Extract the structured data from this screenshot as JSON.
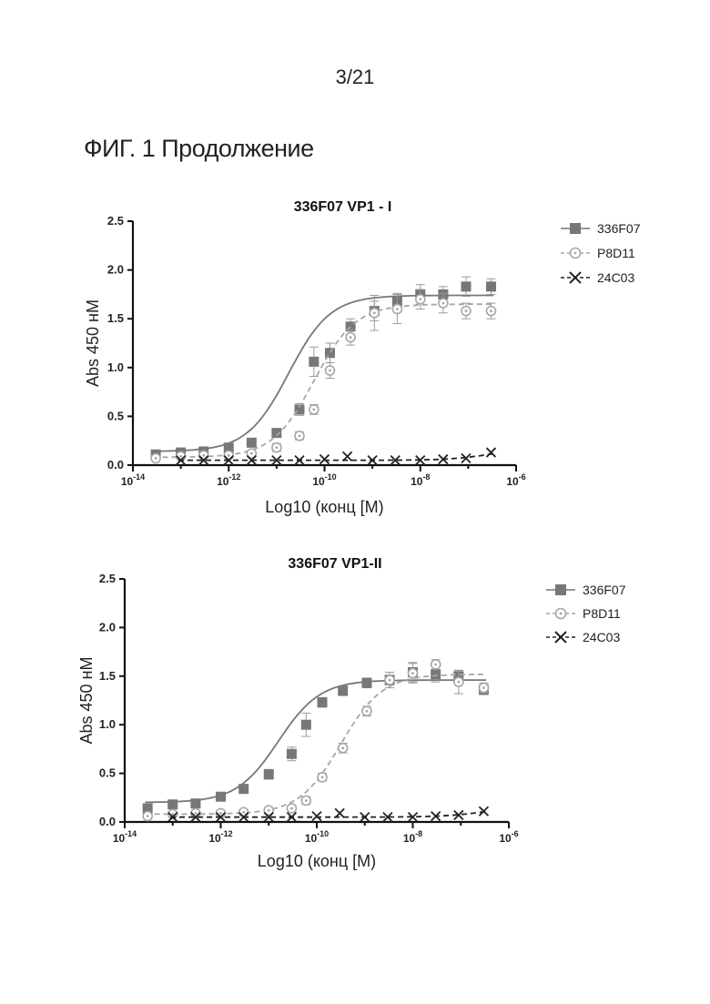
{
  "page": {
    "number": "3/21",
    "figure_heading": "ФИГ. 1 Продолжение"
  },
  "colors": {
    "336F07": "#777777",
    "P8D11": "#a6a6a6",
    "24C03": "#222222",
    "axis": "#111111"
  },
  "chart_data": [
    {
      "type": "scatter",
      "title": "336F07 VP1 - I",
      "xlabel": "Log10 (конц [M)",
      "ylabel": "Abs 450 нМ",
      "xscale": "log",
      "xlim": [
        1e-14,
        1e-06
      ],
      "ylim": [
        0,
        2.5
      ],
      "yticks": [
        "0.0",
        "0.5",
        "1.0",
        "1.5",
        "2.0",
        "2.5"
      ],
      "xticks": [
        {
          "base": "10",
          "exp": "-14"
        },
        {
          "base": "10",
          "exp": "-12"
        },
        {
          "base": "10",
          "exp": "-10"
        },
        {
          "base": "10",
          "exp": "-8"
        },
        {
          "base": "10",
          "exp": "-6"
        }
      ],
      "legend_position": "right",
      "series": [
        {
          "name": "336F07",
          "marker": "square",
          "line": "solid",
          "x": [
            3e-14,
            1e-13,
            3e-13,
            1e-12,
            3e-12,
            1e-11,
            3e-11,
            6e-11,
            1.3e-10,
            3.5e-10,
            1.1e-09,
            3.3e-09,
            1e-08,
            3e-08,
            9e-08,
            3e-07
          ],
          "y": [
            0.11,
            0.13,
            0.14,
            0.18,
            0.23,
            0.33,
            0.57,
            1.06,
            1.15,
            1.42,
            1.58,
            1.68,
            1.75,
            1.75,
            1.83,
            1.83
          ],
          "err": [
            0.03,
            0.03,
            0.03,
            0.03,
            0.03,
            0.04,
            0.06,
            0.15,
            0.1,
            0.08,
            0.1,
            0.08,
            0.1,
            0.08,
            0.1,
            0.08
          ],
          "fit": {
            "bottom": 0.14,
            "top": 1.74,
            "log_ec50": -10.75,
            "hill": 1.0
          }
        },
        {
          "name": "P8D11",
          "marker": "circle",
          "line": "dashed",
          "x": [
            3e-14,
            1e-13,
            3e-13,
            1e-12,
            3e-12,
            1e-11,
            3e-11,
            6e-11,
            1.3e-10,
            3.5e-10,
            1.1e-09,
            3.3e-09,
            1e-08,
            3e-08,
            9e-08,
            3e-07
          ],
          "y": [
            0.07,
            0.09,
            0.1,
            0.1,
            0.12,
            0.18,
            0.3,
            0.57,
            0.97,
            1.31,
            1.56,
            1.6,
            1.7,
            1.66,
            1.58,
            1.58
          ],
          "err": [
            0.02,
            0.02,
            0.02,
            0.02,
            0.03,
            0.04,
            0.04,
            0.05,
            0.08,
            0.08,
            0.18,
            0.15,
            0.1,
            0.1,
            0.08,
            0.08
          ],
          "fit": {
            "bottom": 0.08,
            "top": 1.65,
            "log_ec50": -10.22,
            "hill": 1.0
          }
        },
        {
          "name": "24C03",
          "marker": "x",
          "line": "dashed",
          "x": [
            1e-13,
            3e-13,
            1e-12,
            3e-12,
            1e-11,
            3e-11,
            1e-10,
            3e-10,
            1e-09,
            3e-09,
            1e-08,
            3e-08,
            9e-08,
            3e-07
          ],
          "y": [
            0.05,
            0.05,
            0.05,
            0.05,
            0.05,
            0.05,
            0.06,
            0.09,
            0.05,
            0.05,
            0.05,
            0.06,
            0.07,
            0.13
          ],
          "err": [
            0,
            0,
            0,
            0,
            0,
            0,
            0,
            0,
            0,
            0,
            0,
            0,
            0,
            0
          ],
          "fit": {
            "bottom": 0.05,
            "top": 0.18,
            "log_ec50": -6.5,
            "hill": 1.0
          }
        }
      ]
    },
    {
      "type": "scatter",
      "title": "336F07 VP1-II",
      "xlabel": "Log10 (конц [M)",
      "ylabel": "Abs 450 нМ",
      "xscale": "log",
      "xlim": [
        1e-14,
        1e-06
      ],
      "ylim": [
        0,
        2.5
      ],
      "yticks": [
        "0.0",
        "0.5",
        "1.0",
        "1.5",
        "2.0",
        "2.5"
      ],
      "xticks": [
        {
          "base": "10",
          "exp": "-14"
        },
        {
          "base": "10",
          "exp": "-12"
        },
        {
          "base": "10",
          "exp": "-10"
        },
        {
          "base": "10",
          "exp": "-8"
        },
        {
          "base": "10",
          "exp": "-6"
        }
      ],
      "legend_position": "right",
      "series": [
        {
          "name": "336F07",
          "marker": "square",
          "line": "solid",
          "x": [
            3e-14,
            1e-13,
            3e-13,
            1e-12,
            3e-12,
            1e-11,
            3e-11,
            6e-11,
            1.3e-10,
            3.5e-10,
            1.1e-09,
            3.3e-09,
            1e-08,
            3e-08,
            9e-08,
            3e-07
          ],
          "y": [
            0.14,
            0.18,
            0.19,
            0.26,
            0.34,
            0.49,
            0.7,
            1.0,
            1.23,
            1.35,
            1.43,
            1.46,
            1.54,
            1.52,
            1.5,
            1.36
          ],
          "err": [
            0.03,
            0.03,
            0.03,
            0.03,
            0.04,
            0.05,
            0.07,
            0.12,
            0.05,
            0.05,
            0.05,
            0.05,
            0.1,
            0.08,
            0.06,
            0.05
          ],
          "fit": {
            "bottom": 0.2,
            "top": 1.46,
            "log_ec50": -10.8,
            "hill": 1.0
          }
        },
        {
          "name": "P8D11",
          "marker": "circle",
          "line": "dashed",
          "x": [
            3e-14,
            1e-13,
            3e-13,
            1e-12,
            3e-12,
            1e-11,
            3e-11,
            6e-11,
            1.3e-10,
            3.5e-10,
            1.1e-09,
            3.3e-09,
            1e-08,
            3e-08,
            9e-08,
            3e-07
          ],
          "y": [
            0.06,
            0.08,
            0.09,
            0.09,
            0.1,
            0.12,
            0.14,
            0.22,
            0.46,
            0.76,
            1.14,
            1.46,
            1.53,
            1.62,
            1.44,
            1.38
          ],
          "err": [
            0.02,
            0.02,
            0.02,
            0.02,
            0.02,
            0.02,
            0.03,
            0.04,
            0.04,
            0.05,
            0.05,
            0.08,
            0.1,
            0.05,
            0.12,
            0.05
          ],
          "fit": {
            "bottom": 0.08,
            "top": 1.52,
            "log_ec50": -9.5,
            "hill": 1.0
          }
        },
        {
          "name": "24C03",
          "marker": "x",
          "line": "dashed",
          "x": [
            1e-13,
            3e-13,
            1e-12,
            3e-12,
            1e-11,
            3e-11,
            1e-10,
            3e-10,
            1e-09,
            3e-09,
            1e-08,
            3e-08,
            9e-08,
            3e-07
          ],
          "y": [
            0.05,
            0.05,
            0.05,
            0.05,
            0.05,
            0.05,
            0.06,
            0.09,
            0.05,
            0.05,
            0.05,
            0.06,
            0.07,
            0.11
          ],
          "err": [
            0,
            0,
            0,
            0,
            0,
            0,
            0,
            0,
            0,
            0,
            0,
            0,
            0,
            0
          ],
          "fit": {
            "bottom": 0.05,
            "top": 0.16,
            "log_ec50": -6.5,
            "hill": 1.0
          }
        }
      ]
    }
  ]
}
